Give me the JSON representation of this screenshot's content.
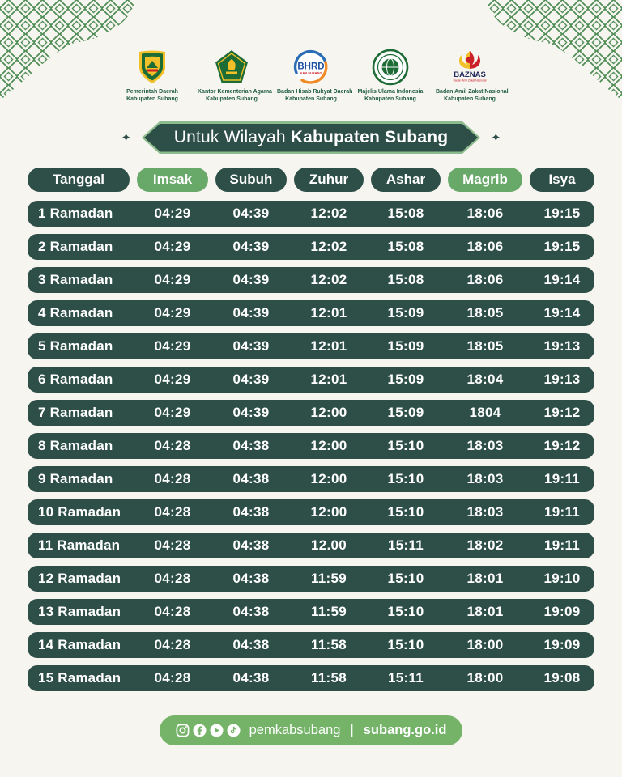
{
  "colors": {
    "background": "#f7f5f0",
    "dark_green": "#2e4f47",
    "pill_green": "#68a869",
    "footer_green": "#74b368",
    "caption_green": "#1f5c46",
    "banner_outline": "#8cbc8d",
    "lattice_green": "#4e8c55"
  },
  "decorations": {
    "diamond": "✦"
  },
  "logos": [
    {
      "name": "pemda-subang",
      "caption_line1": "Pemerintah Daerah",
      "caption_line2": "Kabupaten Subang"
    },
    {
      "name": "kemenag",
      "caption_line1": "Kantor Kementerian Agama",
      "caption_line2": "Kabupaten Subang"
    },
    {
      "name": "bhrd",
      "logo_text": "BHRD",
      "logo_subtext": "KAB SUBANG",
      "caption_line1": "Badan Hisab Rukyat Daerah",
      "caption_line2": "Kabupaten Subang"
    },
    {
      "name": "mui",
      "caption_line1": "Majelis Ulama Indonesia",
      "caption_line2": "Kabupaten Subang"
    },
    {
      "name": "baznas",
      "logo_text": "BAZNAS",
      "logo_subtext": "Badan Amil Zakat Nasional",
      "caption_line1": "Badan Amil Zakat Nasional",
      "caption_line2": "Kabupaten Subang"
    }
  ],
  "title": {
    "prefix": "Untuk Wilayah",
    "bold": "Kabupaten Subang"
  },
  "table": {
    "headers": [
      {
        "label": "Tanggal",
        "highlight": false
      },
      {
        "label": "Imsak",
        "highlight": true
      },
      {
        "label": "Subuh",
        "highlight": false
      },
      {
        "label": "Zuhur",
        "highlight": false
      },
      {
        "label": "Ashar",
        "highlight": false
      },
      {
        "label": "Magrib",
        "highlight": true
      },
      {
        "label": "Isya",
        "highlight": false
      }
    ],
    "rows": [
      {
        "date": "1 Ramadan",
        "times": [
          "04:29",
          "04:39",
          "12:02",
          "15:08",
          "18:06",
          "19:15"
        ]
      },
      {
        "date": "2 Ramadan",
        "times": [
          "04:29",
          "04:39",
          "12:02",
          "15:08",
          "18:06",
          "19:15"
        ]
      },
      {
        "date": "3 Ramadan",
        "times": [
          "04:29",
          "04:39",
          "12:02",
          "15:08",
          "18:06",
          "19:14"
        ]
      },
      {
        "date": "4 Ramadan",
        "times": [
          "04:29",
          "04:39",
          "12:01",
          "15:09",
          "18:05",
          "19:14"
        ]
      },
      {
        "date": "5 Ramadan",
        "times": [
          "04:29",
          "04:39",
          "12:01",
          "15:09",
          "18:05",
          "19:13"
        ]
      },
      {
        "date": "6 Ramadan",
        "times": [
          "04:29",
          "04:39",
          "12:01",
          "15:09",
          "18:04",
          "19:13"
        ]
      },
      {
        "date": "7 Ramadan",
        "times": [
          "04:29",
          "04:39",
          "12:00",
          "15:09",
          "1804",
          "19:12"
        ]
      },
      {
        "date": "8 Ramadan",
        "times": [
          "04:28",
          "04:38",
          "12:00",
          "15:10",
          "18:03",
          "19:12"
        ]
      },
      {
        "date": "9 Ramadan",
        "times": [
          "04:28",
          "04:38",
          "12:00",
          "15:10",
          "18:03",
          "19:11"
        ]
      },
      {
        "date": "10 Ramadan",
        "times": [
          "04:28",
          "04:38",
          "12:00",
          "15:10",
          "18:03",
          "19:11"
        ]
      },
      {
        "date": "11 Ramadan",
        "times": [
          "04:28",
          "04:38",
          "12.00",
          "15:11",
          "18:02",
          "19:11"
        ]
      },
      {
        "date": "12 Ramadan",
        "times": [
          "04:28",
          "04:38",
          "11:59",
          "15:10",
          "18:01",
          "19:10"
        ]
      },
      {
        "date": "13 Ramadan",
        "times": [
          "04:28",
          "04:38",
          "11:59",
          "15:10",
          "18:01",
          "19:09"
        ]
      },
      {
        "date": "14 Ramadan",
        "times": [
          "04:28",
          "04:38",
          "11:58",
          "15:10",
          "18:00",
          "19:09"
        ]
      },
      {
        "date": "15 Ramadan",
        "times": [
          "04:28",
          "04:38",
          "11:58",
          "15:11",
          "18:00",
          "19:08"
        ]
      }
    ]
  },
  "footer": {
    "icons": [
      "instagram",
      "facebook",
      "youtube",
      "tiktok"
    ],
    "handle": "pemkabsubang",
    "separator": "|",
    "website": "subang.go.id"
  }
}
